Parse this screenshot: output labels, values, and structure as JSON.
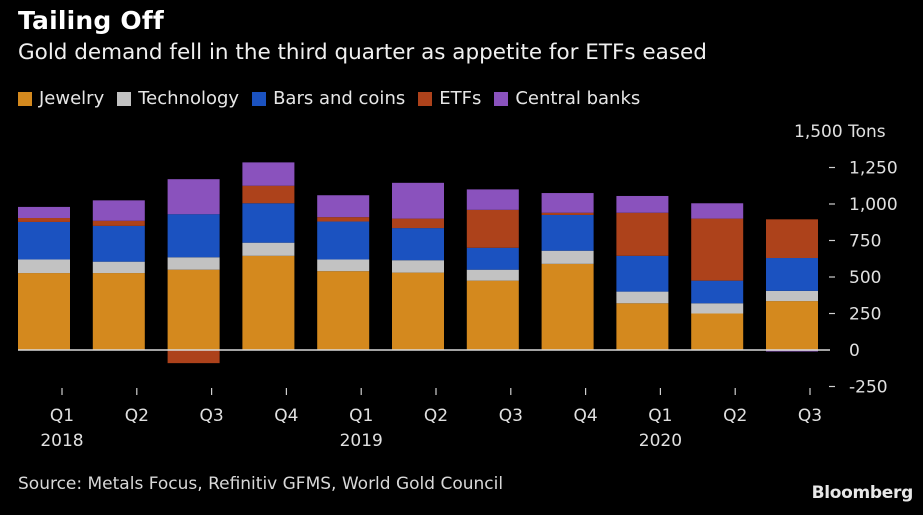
{
  "header": {
    "title": "Tailing Off",
    "subtitle": "Gold demand fell in the third quarter as appetite for ETFs eased"
  },
  "legend": [
    {
      "label": "Jewelry",
      "color": "#d4891e"
    },
    {
      "label": "Technology",
      "color": "#c2c2c2"
    },
    {
      "label": "Bars and coins",
      "color": "#1b52c0"
    },
    {
      "label": "ETFs",
      "color": "#ad421b"
    },
    {
      "label": "Central banks",
      "color": "#8a52bd"
    }
  ],
  "footer": {
    "source": "Source: Metals Focus, Refinitiv GFMS, World Gold Council",
    "brand": "Bloomberg"
  },
  "chart_data": {
    "type": "bar",
    "stacked": true,
    "title": "Tailing Off",
    "subtitle": "Gold demand fell in the third quarter as appetite for ETFs eased",
    "xlabel": "",
    "ylabel": "Tons",
    "unit_label": "Tons",
    "ylim": [
      -250,
      1500
    ],
    "yticks": [
      -250,
      0,
      250,
      500,
      750,
      1000,
      1250,
      1500
    ],
    "ytick_labels": [
      "-250",
      "0",
      "250",
      "500",
      "750",
      "1,000",
      "1,250",
      "1,500"
    ],
    "categories": [
      "Q1",
      "Q2",
      "Q3",
      "Q4",
      "Q1",
      "Q2",
      "Q3",
      "Q4",
      "Q1",
      "Q2",
      "Q3"
    ],
    "year_labels": [
      "2018",
      "",
      "",
      "",
      "2019",
      "",
      "",
      "",
      "2020",
      "",
      ""
    ],
    "legend_position": "top-left",
    "grid": false,
    "series": [
      {
        "name": "Jewelry",
        "color": "#d4891e",
        "values": [
          527,
          527,
          550,
          645,
          540,
          530,
          475,
          590,
          320,
          250,
          335
        ]
      },
      {
        "name": "Technology",
        "color": "#c2c2c2",
        "values": [
          93,
          78,
          85,
          90,
          80,
          85,
          75,
          90,
          80,
          70,
          70
        ]
      },
      {
        "name": "Bars and coins",
        "color": "#1b52c0",
        "values": [
          257,
          245,
          295,
          270,
          260,
          220,
          150,
          245,
          245,
          155,
          225
        ]
      },
      {
        "name": "ETFs",
        "color": "#ad421b",
        "values": [
          27,
          35,
          -90,
          120,
          30,
          65,
          260,
          15,
          295,
          425,
          265
        ]
      },
      {
        "name": "Central banks",
        "color": "#8a52bd",
        "values": [
          76,
          140,
          240,
          160,
          150,
          245,
          140,
          135,
          115,
          105,
          -10
        ]
      }
    ]
  }
}
